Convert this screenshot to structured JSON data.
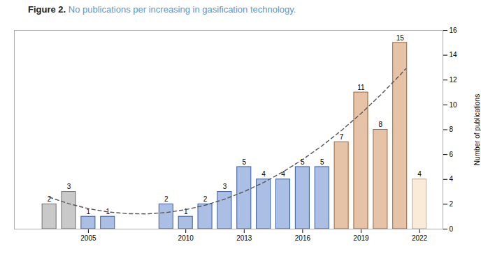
{
  "chart_data": {
    "type": "bar",
    "title": "Figure 2. No publications per increasing in gasification technology.",
    "y_label": "Number of publications",
    "xlim": [
      2001.2,
      2023.2
    ],
    "xticks": [
      2005,
      2010,
      2013,
      2016,
      2019,
      2022
    ],
    "ylim": [
      0,
      16
    ],
    "yticks": [
      0,
      2,
      4,
      6,
      8,
      10,
      12,
      14,
      16
    ],
    "grid": false,
    "data_labels": true,
    "series": [
      {
        "type": "bar",
        "x": [
          2003,
          2004,
          2005,
          2006,
          2009,
          2010,
          2011,
          2012,
          2013,
          2014,
          2015,
          2016,
          2017,
          2018,
          2019,
          2020,
          2021,
          2022
        ],
        "values": [
          2,
          3,
          1,
          1,
          2,
          1,
          2,
          3,
          5,
          4,
          4,
          5,
          5,
          7,
          11,
          8,
          15,
          4
        ],
        "colors": [
          "#888888",
          "#888888",
          "#4472c4",
          "#4472c4",
          "#4472c4",
          "#4472c4",
          "#4472c4",
          "#4472c4",
          "#4472c4",
          "#4472c4",
          "#4472c4",
          "#4472c4",
          "#4472c4",
          "#c8783c",
          "#c8783c",
          "#c8783c",
          "#c8783c",
          "#f5d0a8"
        ]
      },
      {
        "type": "line",
        "color": "#555555",
        "line_style": "dashed",
        "x": [
          2003,
          2004,
          2005,
          2006,
          2007,
          2008,
          2009,
          2010,
          2011,
          2012,
          2013,
          2014,
          2015,
          2016,
          2017,
          2018,
          2019,
          2020,
          2021,
          2021.3
        ],
        "values": [
          2.557,
          2.039,
          1.647,
          1.38,
          1.238,
          1.222,
          1.33,
          1.564,
          1.924,
          2.408,
          3.018,
          3.753,
          4.614,
          5.599,
          6.71,
          7.947,
          9.308,
          10.795,
          12.407,
          12.915
        ]
      }
    ]
  }
}
